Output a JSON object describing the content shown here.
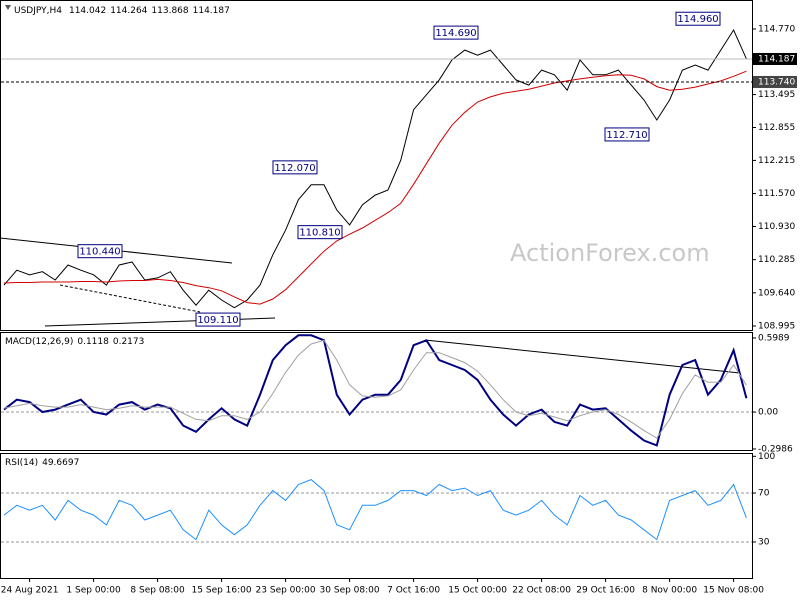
{
  "chart_data": [
    {
      "type": "line",
      "title": "USDJPY,H4",
      "ohlc": [
        114.042,
        114.264,
        113.868,
        114.187
      ],
      "watermark": "ActionForex.com",
      "categories": [
        null,
        null,
        "24 Aug 2021",
        null,
        null,
        null,
        null,
        "1 Sep 00:00",
        null,
        null,
        null,
        null,
        "8 Sep 08:00",
        null,
        null,
        null,
        null,
        "15 Sep 16:00",
        null,
        null,
        null,
        null,
        "23 Sep 00:00",
        null,
        null,
        null,
        null,
        "30 Sep 08:00",
        null,
        null,
        null,
        null,
        "7 Oct 16:00",
        null,
        null,
        null,
        null,
        "15 Oct 00:00",
        null,
        null,
        null,
        null,
        "22 Oct 08:00",
        null,
        null,
        null,
        null,
        "29 Oct 16:00",
        null,
        null,
        null,
        null,
        "8 Nov 00:00",
        null,
        null,
        null,
        null,
        "15 Nov 08:00",
        null
      ],
      "series": [
        {
          "color": "#000000",
          "values": [
            109.79,
            110.08,
            109.99,
            110.05,
            109.89,
            110.18,
            110.08,
            109.99,
            109.79,
            110.18,
            110.24,
            109.89,
            109.93,
            110.05,
            109.69,
            109.4,
            109.69,
            109.5,
            109.35,
            109.5,
            109.79,
            110.38,
            110.86,
            111.45,
            111.74,
            111.74,
            111.25,
            110.96,
            111.35,
            111.54,
            111.64,
            112.22,
            113.2,
            113.49,
            113.78,
            114.17,
            114.36,
            114.26,
            114.36,
            114.07,
            113.78,
            113.68,
            113.97,
            113.88,
            113.58,
            114.17,
            113.88,
            113.88,
            113.97,
            113.68,
            113.39,
            113.0,
            113.39,
            113.97,
            114.07,
            113.97,
            114.36,
            114.75,
            114.19
          ]
        },
        {
          "color": "#d00000",
          "values": [
            109.83,
            109.84,
            109.84,
            109.85,
            109.85,
            109.85,
            109.86,
            109.86,
            109.85,
            109.87,
            109.88,
            109.88,
            109.9,
            109.88,
            109.84,
            109.78,
            109.74,
            109.68,
            109.56,
            109.45,
            109.42,
            109.52,
            109.7,
            109.95,
            110.2,
            110.45,
            110.65,
            110.78,
            110.9,
            111.05,
            111.2,
            111.38,
            111.75,
            112.15,
            112.55,
            112.9,
            113.15,
            113.35,
            113.45,
            113.52,
            113.56,
            113.6,
            113.66,
            113.72,
            113.76,
            113.8,
            113.83,
            113.86,
            113.88,
            113.87,
            113.8,
            113.65,
            113.58,
            113.6,
            113.64,
            113.7,
            113.76,
            113.85,
            113.95
          ]
        }
      ],
      "ylim": [
        108.917,
        115.334
      ],
      "yticks": [
        {
          "value": 114.77,
          "label": "114.770"
        },
        113.495,
        112.855,
        112.215,
        {
          "value": 111.57,
          "label": "111.570"
        },
        {
          "value": 110.93,
          "label": "110.930"
        },
        110.285,
        {
          "value": 109.64,
          "label": "109.640"
        },
        108.995
      ],
      "current_price": 114.187,
      "level": {
        "value": 113.74,
        "label": "113.740"
      },
      "annotations": [
        {
          "value": 114.69,
          "label": "114.690"
        },
        {
          "value": 114.96,
          "label": "114.960"
        },
        {
          "value": 112.71,
          "label": "112.710"
        },
        {
          "value": 112.07,
          "label": "112.070"
        },
        {
          "value": 110.81,
          "label": "110.810"
        },
        {
          "value": 110.44,
          "label": "110.440"
        },
        {
          "value": 109.11,
          "label": "109.110"
        }
      ]
    },
    {
      "type": "line",
      "title": "MACD(12,26,9)",
      "readout": [
        0.1118,
        0.2173
      ],
      "series": [
        {
          "color": "#000080",
          "values": [
            0.02,
            0.1,
            0.08,
            0.0,
            0.02,
            0.06,
            0.1,
            0.0,
            -0.02,
            0.06,
            0.08,
            0.02,
            0.06,
            0.03,
            -0.11,
            -0.16,
            -0.06,
            0.03,
            -0.06,
            -0.11,
            0.14,
            0.42,
            0.54,
            0.62,
            0.62,
            0.58,
            0.14,
            -0.02,
            0.1,
            0.14,
            0.14,
            0.26,
            0.54,
            0.58,
            0.42,
            0.38,
            0.34,
            0.26,
            0.1,
            -0.02,
            -0.11,
            -0.02,
            0.02,
            -0.08,
            -0.11,
            0.06,
            0.02,
            0.03,
            -0.06,
            -0.15,
            -0.23,
            -0.27,
            0.14,
            0.38,
            0.42,
            0.14,
            0.26,
            0.5,
            0.1118
          ]
        },
        {
          "color": "#a0a0a0",
          "values": [
            0.03,
            0.05,
            0.07,
            0.05,
            0.04,
            0.04,
            0.06,
            0.04,
            0.02,
            0.03,
            0.05,
            0.04,
            0.04,
            0.04,
            -0.01,
            -0.06,
            -0.07,
            -0.03,
            -0.03,
            -0.06,
            0.0,
            0.15,
            0.32,
            0.46,
            0.55,
            0.58,
            0.42,
            0.22,
            0.13,
            0.12,
            0.13,
            0.18,
            0.34,
            0.48,
            0.48,
            0.44,
            0.4,
            0.33,
            0.22,
            0.1,
            0.0,
            -0.03,
            -0.01,
            -0.04,
            -0.07,
            -0.03,
            0.0,
            0.02,
            -0.02,
            -0.08,
            -0.15,
            -0.21,
            -0.06,
            0.15,
            0.3,
            0.24,
            0.24,
            0.38,
            0.2173
          ]
        }
      ],
      "ylim": [
        -0.307,
        0.647
      ],
      "yticks": [
        0.5989,
        {
          "value": 0,
          "label": "0.00"
        },
        -0.2986
      ]
    },
    {
      "type": "line",
      "title": "RSI(14)",
      "readout": 49.6697,
      "color": "#1e90ff",
      "values": [
        52,
        60,
        56,
        60,
        48,
        64,
        56,
        52,
        44,
        64,
        60,
        48,
        52,
        56,
        40,
        32,
        56,
        44,
        36,
        44,
        60,
        72,
        64,
        77,
        81,
        72,
        44,
        40,
        60,
        60,
        64,
        72,
        72,
        68,
        77,
        72,
        74,
        68,
        72,
        56,
        52,
        56,
        64,
        52,
        44,
        68,
        60,
        64,
        52,
        48,
        40,
        32,
        64,
        68,
        72,
        60,
        64,
        77,
        49.6697
      ],
      "ylim": [
        0.6,
        102.7
      ],
      "yticks": [
        100,
        70,
        30
      ],
      "levels": [
        70,
        30
      ]
    }
  ]
}
